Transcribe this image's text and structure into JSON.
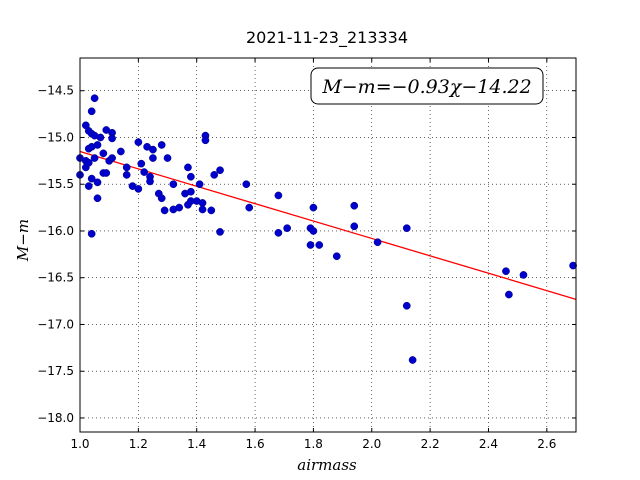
{
  "chart_data": {
    "type": "scatter",
    "title": "2021-11-23_213334",
    "xlabel": "airmass",
    "ylabel": "M−m",
    "xlim": [
      1.0,
      2.7
    ],
    "ylim": [
      -18.15,
      -14.15
    ],
    "y_inverted": true,
    "grid": true,
    "xticks": [
      1.0,
      1.2,
      1.4,
      1.6,
      1.8,
      2.0,
      2.2,
      2.4,
      2.6
    ],
    "xtick_labels": [
      "1.0",
      "1.2",
      "1.4",
      "1.6",
      "1.8",
      "2.0",
      "2.2",
      "2.4",
      "2.6"
    ],
    "yticks": [
      -14.5,
      -15.0,
      -15.5,
      -16.0,
      -16.5,
      -17.0,
      -17.5,
      -18.0
    ],
    "ytick_labels": [
      "−14.5",
      "−15.0",
      "−15.5",
      "−16.0",
      "−16.5",
      "−17.0",
      "−17.5",
      "−18.0"
    ],
    "annotation": "M−m=−0.93χ−14.22",
    "annotation_position": "top-right",
    "point_color": "#0000cc",
    "fit_color": "#ff0000",
    "fit": {
      "slope": -0.93,
      "intercept": -14.22,
      "x_range": [
        1.0,
        2.7
      ]
    },
    "points": [
      [
        1.0,
        -15.22
      ],
      [
        1.0,
        -15.4
      ],
      [
        1.02,
        -14.87
      ],
      [
        1.02,
        -15.25
      ],
      [
        1.02,
        -15.32
      ],
      [
        1.03,
        -14.93
      ],
      [
        1.03,
        -15.12
      ],
      [
        1.03,
        -15.27
      ],
      [
        1.03,
        -15.52
      ],
      [
        1.04,
        -14.72
      ],
      [
        1.04,
        -14.96
      ],
      [
        1.04,
        -15.1
      ],
      [
        1.04,
        -15.44
      ],
      [
        1.04,
        -16.03
      ],
      [
        1.05,
        -14.58
      ],
      [
        1.05,
        -14.98
      ],
      [
        1.05,
        -15.22
      ],
      [
        1.06,
        -15.08
      ],
      [
        1.06,
        -15.65
      ],
      [
        1.06,
        -15.48
      ],
      [
        1.07,
        -15.0
      ],
      [
        1.08,
        -15.17
      ],
      [
        1.08,
        -15.38
      ],
      [
        1.09,
        -14.92
      ],
      [
        1.09,
        -15.38
      ],
      [
        1.1,
        -15.25
      ],
      [
        1.11,
        -14.95
      ],
      [
        1.11,
        -15.01
      ],
      [
        1.11,
        -15.22
      ],
      [
        1.14,
        -15.15
      ],
      [
        1.16,
        -15.32
      ],
      [
        1.16,
        -15.4
      ],
      [
        1.18,
        -15.52
      ],
      [
        1.2,
        -15.05
      ],
      [
        1.2,
        -15.55
      ],
      [
        1.21,
        -15.28
      ],
      [
        1.22,
        -15.37
      ],
      [
        1.23,
        -15.1
      ],
      [
        1.24,
        -15.42
      ],
      [
        1.24,
        -15.47
      ],
      [
        1.25,
        -15.13
      ],
      [
        1.25,
        -15.22
      ],
      [
        1.27,
        -15.6
      ],
      [
        1.28,
        -15.08
      ],
      [
        1.28,
        -15.65
      ],
      [
        1.29,
        -15.78
      ],
      [
        1.3,
        -15.22
      ],
      [
        1.32,
        -15.5
      ],
      [
        1.32,
        -15.77
      ],
      [
        1.34,
        -15.75
      ],
      [
        1.36,
        -15.6
      ],
      [
        1.37,
        -15.32
      ],
      [
        1.37,
        -15.72
      ],
      [
        1.38,
        -15.42
      ],
      [
        1.38,
        -15.58
      ],
      [
        1.38,
        -15.68
      ],
      [
        1.4,
        -15.68
      ],
      [
        1.41,
        -15.5
      ],
      [
        1.42,
        -15.7
      ],
      [
        1.42,
        -15.77
      ],
      [
        1.43,
        -14.98
      ],
      [
        1.43,
        -15.03
      ],
      [
        1.45,
        -15.78
      ],
      [
        1.46,
        -15.4
      ],
      [
        1.48,
        -15.35
      ],
      [
        1.48,
        -16.01
      ],
      [
        1.57,
        -15.5
      ],
      [
        1.58,
        -15.75
      ],
      [
        1.68,
        -15.62
      ],
      [
        1.68,
        -16.02
      ],
      [
        1.71,
        -15.97
      ],
      [
        1.79,
        -16.15
      ],
      [
        1.79,
        -15.97
      ],
      [
        1.8,
        -15.75
      ],
      [
        1.8,
        -16.0
      ],
      [
        1.82,
        -16.15
      ],
      [
        1.88,
        -16.27
      ],
      [
        1.94,
        -15.73
      ],
      [
        1.94,
        -15.95
      ],
      [
        2.02,
        -16.12
      ],
      [
        2.12,
        -15.97
      ],
      [
        2.12,
        -16.8
      ],
      [
        2.14,
        -17.38
      ],
      [
        2.46,
        -16.43
      ],
      [
        2.47,
        -16.68
      ],
      [
        2.52,
        -16.47
      ],
      [
        2.69,
        -16.37
      ]
    ]
  }
}
